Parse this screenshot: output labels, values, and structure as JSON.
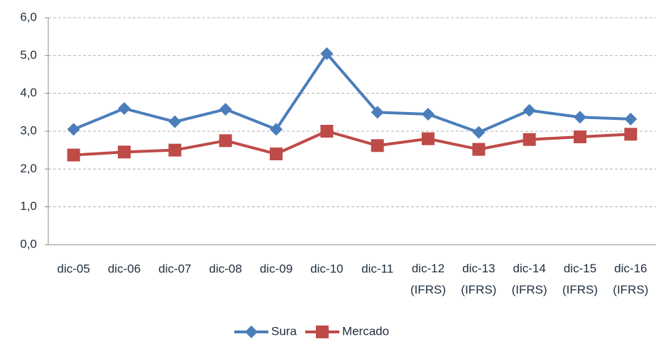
{
  "chart_data": {
    "type": "line",
    "categories": [
      "dic-05",
      "dic-06",
      "dic-07",
      "dic-08",
      "dic-09",
      "dic-10",
      "dic-11",
      "dic-12 (IFRS)",
      "dic-13 (IFRS)",
      "dic-14 (IFRS)",
      "dic-15 (IFRS)",
      "dic-16 (IFRS)"
    ],
    "series": [
      {
        "name": "Sura",
        "color": "#4a7ebb",
        "marker": "diamond",
        "values": [
          3.05,
          3.6,
          3.25,
          3.58,
          3.05,
          5.05,
          3.5,
          3.45,
          2.97,
          3.55,
          3.37,
          3.32
        ]
      },
      {
        "name": "Mercado",
        "color": "#be4b48",
        "marker": "square",
        "values": [
          2.37,
          2.45,
          2.5,
          2.75,
          2.4,
          3.0,
          2.62,
          2.8,
          2.52,
          2.78,
          2.85,
          2.92
        ]
      }
    ],
    "ylim": [
      0,
      6
    ],
    "yticks": [
      {
        "value": 0,
        "label": "0,0"
      },
      {
        "value": 1,
        "label": "1,0"
      },
      {
        "value": 2,
        "label": "2,0"
      },
      {
        "value": 3,
        "label": "3,0"
      },
      {
        "value": 4,
        "label": "4,0"
      },
      {
        "value": 5,
        "label": "5,0"
      },
      {
        "value": 6,
        "label": "6,0"
      }
    ],
    "grid": true,
    "legend": "bottom"
  }
}
